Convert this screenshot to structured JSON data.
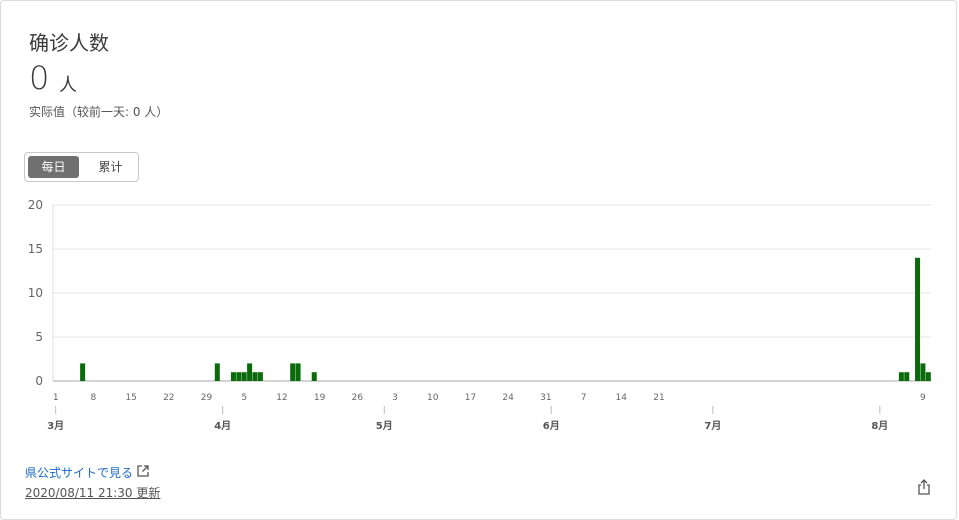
{
  "header": {
    "title": "确诊人数",
    "value": "0",
    "unit": "人",
    "subtitle": "实际值（较前一天: 0 人）"
  },
  "toggle": {
    "daily_label": "每日",
    "cumulative_label": "累计",
    "selected": "daily"
  },
  "footer": {
    "link_label": "県公式サイトで見る",
    "updated_label": "2020/08/11 21:30 更新"
  },
  "icons": {
    "external": "external-link-icon",
    "share": "share-icon"
  },
  "colors": {
    "bar": "#0b6a0b",
    "link": "#1e69c7",
    "toggle_active": "#707070"
  },
  "chart_data": {
    "type": "bar",
    "title": "",
    "xlabel": "",
    "ylabel": "",
    "ylim": [
      0,
      20
    ],
    "yticks": [
      0,
      5,
      10,
      15,
      20
    ],
    "grid": true,
    "x_start": "2020-03-01",
    "x_end": "2020-08-10",
    "day_ticks": [
      "1",
      "8",
      "15",
      "22",
      "29",
      "5",
      "12",
      "19",
      "26",
      "3",
      "10",
      "17",
      "24",
      "31",
      "7",
      "14",
      "21",
      "9"
    ],
    "day_tick_dates": [
      "2020-03-01",
      "2020-03-08",
      "2020-03-15",
      "2020-03-22",
      "2020-03-29",
      "2020-04-05",
      "2020-04-12",
      "2020-04-19",
      "2020-04-26",
      "2020-05-03",
      "2020-05-10",
      "2020-05-17",
      "2020-05-24",
      "2020-05-31",
      "2020-06-07",
      "2020-06-14",
      "2020-06-21",
      "2020-08-09"
    ],
    "month_ticks": [
      "3月",
      "4月",
      "5月",
      "6月",
      "7月",
      "8月"
    ],
    "month_tick_dates": [
      "2020-03-01",
      "2020-04-01",
      "2020-05-01",
      "2020-06-01",
      "2020-07-01",
      "2020-08-01"
    ],
    "points": [
      {
        "date": "2020-03-06",
        "value": 2
      },
      {
        "date": "2020-03-31",
        "value": 2
      },
      {
        "date": "2020-04-03",
        "value": 1
      },
      {
        "date": "2020-04-04",
        "value": 1
      },
      {
        "date": "2020-04-05",
        "value": 1
      },
      {
        "date": "2020-04-06",
        "value": 2
      },
      {
        "date": "2020-04-07",
        "value": 1
      },
      {
        "date": "2020-04-08",
        "value": 1
      },
      {
        "date": "2020-04-14",
        "value": 2
      },
      {
        "date": "2020-04-15",
        "value": 2
      },
      {
        "date": "2020-04-18",
        "value": 1
      },
      {
        "date": "2020-08-05",
        "value": 1
      },
      {
        "date": "2020-08-06",
        "value": 1
      },
      {
        "date": "2020-08-08",
        "value": 14
      },
      {
        "date": "2020-08-09",
        "value": 2
      },
      {
        "date": "2020-08-10",
        "value": 1
      }
    ]
  }
}
